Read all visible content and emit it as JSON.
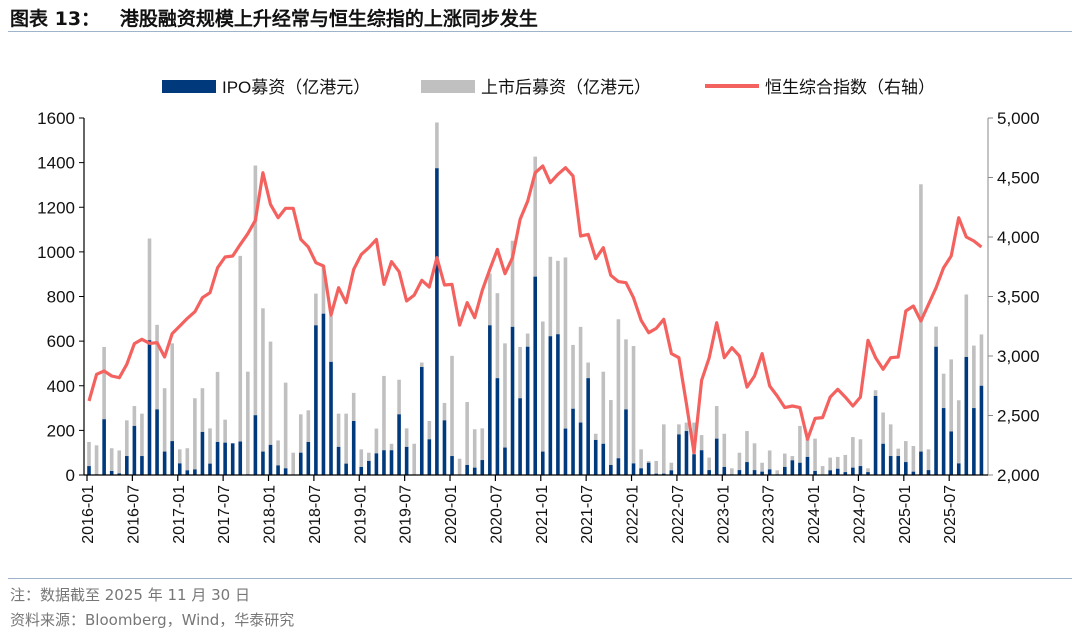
{
  "title": "图表 13：   港股融资规模上升经常与恒生综指的上涨同步发生",
  "footer": {
    "note": "注：数据截至 2025 年 11 月 30 日",
    "source": "资料来源：Bloomberg，Wind，华泰研究"
  },
  "chart_data": {
    "type": "bar+line",
    "title": "",
    "x_start": "2016-01",
    "x_end": "2025-11",
    "x_ticks": [
      "2016-01",
      "2016-07",
      "2017-01",
      "2017-07",
      "2018-01",
      "2018-07",
      "2019-01",
      "2019-07",
      "2020-01",
      "2020-07",
      "2021-01",
      "2021-07",
      "2022-01",
      "2022-07",
      "2023-01",
      "2023-07",
      "2024-01",
      "2024-07",
      "2025-01",
      "2025-07"
    ],
    "y_left": {
      "range": [
        0,
        1600
      ],
      "ticks": [
        0,
        200,
        400,
        600,
        800,
        1000,
        1200,
        1400,
        1600
      ],
      "labels": [
        "0",
        "200",
        "400",
        "600",
        "800",
        "1000",
        "1200",
        "1400",
        "1600"
      ]
    },
    "y_right": {
      "range": [
        2000,
        5000
      ],
      "ticks": [
        2000,
        2500,
        3000,
        3500,
        4000,
        4500,
        5000
      ],
      "labels": [
        "2,000",
        "2,500",
        "3,000",
        "3,500",
        "4,000",
        "4,500",
        "5,000"
      ],
      "label": "右轴"
    },
    "legend_position": "top",
    "stacked": true,
    "series": [
      {
        "name": "IPO募资（亿港元）",
        "kind": "bar",
        "axis": "left",
        "color": "#003a7d",
        "values": [
          40,
          3,
          250,
          18,
          7,
          85,
          220,
          85,
          604,
          294,
          105,
          152,
          52,
          21,
          25,
          193,
          51,
          148,
          145,
          142,
          150,
          3,
          268,
          105,
          135,
          43,
          30,
          0,
          100,
          148,
          671,
          723,
          507,
          126,
          51,
          242,
          36,
          63,
          97,
          111,
          111,
          272,
          126,
          0,
          484,
          160,
          1375,
          245,
          85,
          0,
          45,
          33,
          67,
          671,
          434,
          123,
          664,
          344,
          575,
          889,
          105,
          622,
          631,
          208,
          297,
          235,
          434,
          157,
          140,
          45,
          75,
          294,
          52,
          30,
          55,
          6,
          6,
          21,
          182,
          197,
          93,
          111,
          22,
          163,
          36,
          3,
          22,
          58,
          22,
          15,
          25,
          3,
          36,
          66,
          55,
          81,
          18,
          0,
          21,
          28,
          13,
          33,
          40,
          13,
          354,
          140,
          85,
          85,
          58,
          15,
          105,
          22,
          575,
          300,
          195,
          52,
          529,
          300,
          400
        ]
      },
      {
        "name": "上市后募资（亿港元）",
        "kind": "bar",
        "axis": "left",
        "color": "#c0c0c0",
        "values": [
          108,
          130,
          324,
          102,
          103,
          160,
          89,
          190,
          456,
          379,
          284,
          438,
          63,
          99,
          319,
          196,
          158,
          314,
          103,
          0,
          832,
          460,
          1119,
          642,
          463,
          112,
          384,
          100,
          172,
          142,
          142,
          214,
          206,
          149,
          224,
          126,
          79,
          37,
          111,
          333,
          29,
          155,
          83,
          140,
          20,
          82,
          205,
          78,
          449,
          73,
          282,
          172,
          142,
          232,
          381,
          467,
          386,
          230,
          59,
          538,
          583,
          356,
          329,
          767,
          286,
          429,
          70,
          28,
          323,
          291,
          623,
          314,
          526,
          85,
          8,
          57,
          221,
          34,
          45,
          38,
          142,
          68,
          56,
          146,
          149,
          27,
          78,
          139,
          120,
          40,
          85,
          18,
          60,
          19,
          165,
          82,
          145,
          40,
          57,
          53,
          77,
          137,
          120,
          17,
          26,
          140,
          142,
          33,
          94,
          115,
          1198,
          93,
          90,
          154,
          323,
          283,
          280,
          280,
          230
        ]
      },
      {
        "name": "恒生综合指数（右轴）",
        "kind": "line",
        "axis": "right",
        "color": "#f4625f",
        "values": [
          2622,
          2846,
          2874,
          2832,
          2818,
          2930,
          3104,
          3140,
          3106,
          3112,
          2992,
          3188,
          3252,
          3316,
          3372,
          3490,
          3532,
          3742,
          3832,
          3840,
          3938,
          4028,
          4140,
          4540,
          4274,
          4162,
          4241,
          4241,
          3980,
          3916,
          3784,
          3756,
          3344,
          3574,
          3448,
          3728,
          3854,
          3910,
          3980,
          3602,
          3793,
          3708,
          3462,
          3512,
          3636,
          3580,
          3826,
          3597,
          3602,
          3260,
          3448,
          3322,
          3552,
          3728,
          3896,
          3692,
          3826,
          4148,
          4302,
          4540,
          4597,
          4456,
          4527,
          4582,
          4513,
          4008,
          4022,
          3818,
          3910,
          3678,
          3625,
          3616,
          3490,
          3300,
          3196,
          3232,
          3308,
          3020,
          2986,
          2594,
          2188,
          2795,
          2986,
          3280,
          2986,
          3070,
          3000,
          2739,
          2832,
          3020,
          2748,
          2664,
          2566,
          2580,
          2566,
          2300,
          2476,
          2482,
          2655,
          2720,
          2655,
          2580,
          2655,
          3132,
          2986,
          2888,
          2986,
          2992,
          3378,
          3420,
          3294,
          3434,
          3574,
          3742,
          3840,
          4162,
          4000,
          3966,
          3916
        ]
      }
    ]
  }
}
